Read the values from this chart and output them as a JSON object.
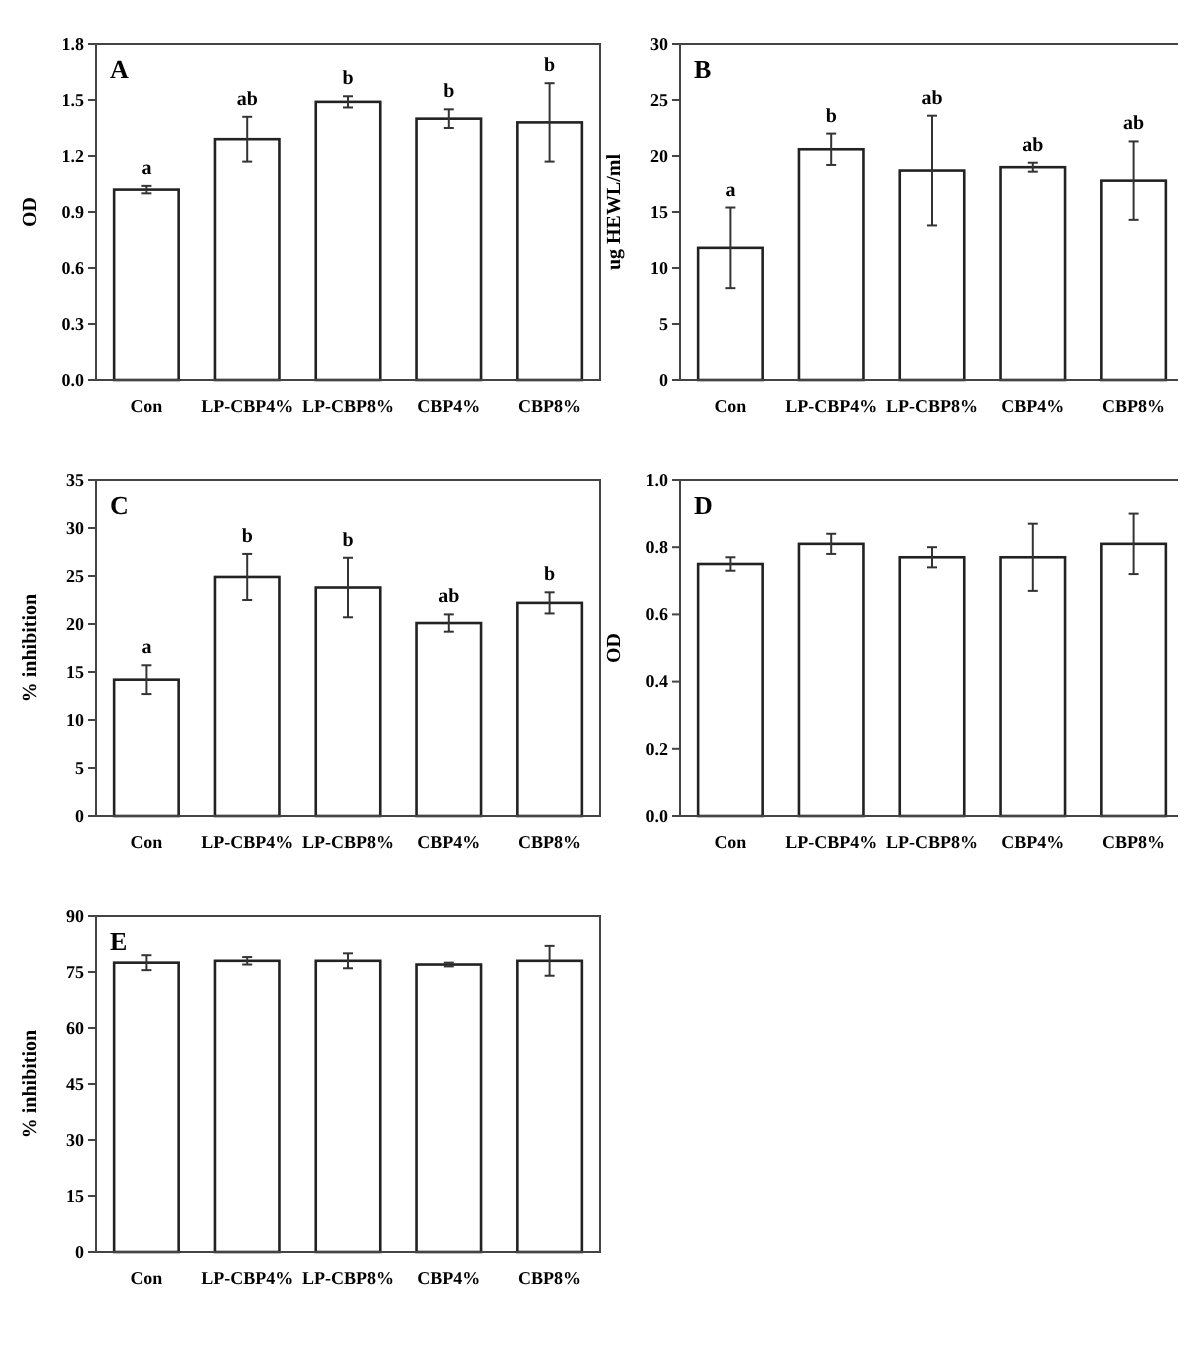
{
  "chart_data": [
    {
      "type": "bar",
      "title": "A",
      "ylabel": "OD",
      "categories": [
        "Con",
        "LP-CBP4%",
        "LP-CBP8%",
        "CBP4%",
        "CBP8%"
      ],
      "values": [
        1.02,
        1.29,
        1.49,
        1.4,
        1.38
      ],
      "errors": [
        0.02,
        0.12,
        0.03,
        0.05,
        0.21
      ],
      "color": "#ffffff",
      "ylim": [
        0,
        1.8
      ],
      "yticks": [
        {
          "value": 0,
          "label": "0.0"
        },
        {
          "value": 0.3,
          "label": "0.3"
        },
        {
          "value": 0.6,
          "label": "0.6"
        },
        {
          "value": 0.9,
          "label": "0.9"
        },
        {
          "value": 1.2,
          "label": "1.2"
        },
        {
          "value": 1.5,
          "label": "1.5"
        },
        {
          "value": 1.8,
          "label": "1.8"
        }
      ],
      "annotations": [
        {
          "text": "a",
          "x": "Con",
          "y": 1.04
        },
        {
          "text": "ab",
          "x": "LP-CBP4%",
          "y": 1.41
        },
        {
          "text": "b",
          "x": "LP-CBP8%",
          "y": 1.52
        },
        {
          "text": "b",
          "x": "CBP4%",
          "y": 1.45
        },
        {
          "text": "b",
          "x": "CBP8%",
          "y": 1.59
        }
      ]
    },
    {
      "type": "bar",
      "title": "B",
      "ylabel": "ug HEWL/ml",
      "categories": [
        "Con",
        "LP-CBP4%",
        "LP-CBP8%",
        "CBP4%",
        "CBP8%"
      ],
      "values": [
        11.8,
        20.6,
        18.7,
        19,
        17.8
      ],
      "errors": [
        3.6,
        1.4,
        4.9,
        0.4,
        3.5
      ],
      "color": "#ffffff",
      "ylim": [
        0,
        30
      ],
      "yticks": [
        0,
        5,
        10,
        15,
        20,
        25,
        30
      ],
      "annotations": [
        {
          "text": "a",
          "x": "Con",
          "y": 15.4
        },
        {
          "text": "b",
          "x": "LP-CBP4%",
          "y": 22
        },
        {
          "text": "ab",
          "x": "LP-CBP8%",
          "y": 23.6
        },
        {
          "text": "ab",
          "x": "CBP4%",
          "y": 19.4
        },
        {
          "text": "ab",
          "x": "CBP8%",
          "y": 21.3
        }
      ]
    },
    {
      "type": "bar",
      "title": "C",
      "ylabel": "% inhibition",
      "categories": [
        "Con",
        "LP-CBP4%",
        "LP-CBP8%",
        "CBP4%",
        "CBP8%"
      ],
      "values": [
        14.2,
        24.9,
        23.8,
        20.1,
        22.2
      ],
      "errors": [
        1.5,
        2.4,
        3.1,
        0.9,
        1.1
      ],
      "color": "#ffffff",
      "ylim": [
        0,
        35
      ],
      "yticks": [
        0,
        5,
        10,
        15,
        20,
        25,
        30,
        35
      ],
      "annotations": [
        {
          "text": "a",
          "x": "Con",
          "y": 15.7
        },
        {
          "text": "b",
          "x": "LP-CBP4%",
          "y": 27.3
        },
        {
          "text": "b",
          "x": "LP-CBP8%",
          "y": 26.9
        },
        {
          "text": "ab",
          "x": "CBP4%",
          "y": 21
        },
        {
          "text": "b",
          "x": "CBP8%",
          "y": 23.3
        }
      ]
    },
    {
      "type": "bar",
      "title": "D",
      "ylabel": "OD",
      "categories": [
        "Con",
        "LP-CBP4%",
        "LP-CBP8%",
        "CBP4%",
        "CBP8%"
      ],
      "values": [
        0.75,
        0.81,
        0.77,
        0.77,
        0.81
      ],
      "errors": [
        0.02,
        0.03,
        0.03,
        0.1,
        0.09
      ],
      "color": "#ffffff",
      "ylim": [
        0,
        1
      ],
      "yticks": [
        {
          "value": 0,
          "label": "0.0"
        },
        {
          "value": 0.2,
          "label": "0.2"
        },
        {
          "value": 0.4,
          "label": "0.4"
        },
        {
          "value": 0.6,
          "label": "0.6"
        },
        {
          "value": 0.8,
          "label": "0.8"
        },
        {
          "value": 1,
          "label": "1.0"
        }
      ]
    },
    {
      "type": "bar",
      "title": "E",
      "ylabel": "% inhibition",
      "categories": [
        "Con",
        "LP-CBP4%",
        "LP-CBP8%",
        "CBP4%",
        "CBP8%"
      ],
      "values": [
        77.5,
        78,
        78,
        77,
        78
      ],
      "errors": [
        2,
        1,
        2,
        0.5,
        4
      ],
      "color": "#ffffff",
      "ylim": [
        0,
        90
      ],
      "yticks": [
        0,
        15,
        30,
        45,
        60,
        75,
        90
      ]
    }
  ]
}
